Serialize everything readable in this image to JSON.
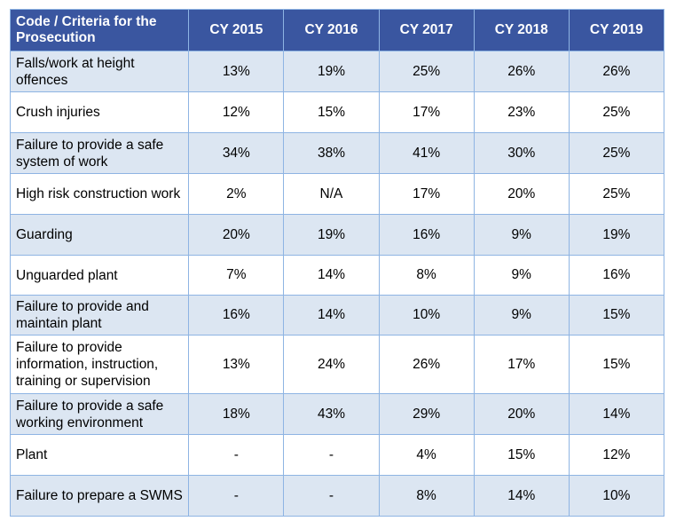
{
  "table": {
    "headers": [
      "Code / Criteria for the Prosecution",
      "CY 2015",
      "CY 2016",
      "CY 2017",
      "CY 2018",
      "CY 2019"
    ],
    "rows": [
      {
        "criteria": "Falls/work at height offences",
        "values": [
          "13%",
          "19%",
          "25%",
          "26%",
          "26%"
        ]
      },
      {
        "criteria": "Crush injuries",
        "values": [
          "12%",
          "15%",
          "17%",
          "23%",
          "25%"
        ]
      },
      {
        "criteria": "Failure to provide a safe system of work",
        "values": [
          "34%",
          "38%",
          "41%",
          "30%",
          "25%"
        ]
      },
      {
        "criteria": "High risk construction work",
        "values": [
          "2%",
          "N/A",
          "17%",
          "20%",
          "25%"
        ]
      },
      {
        "criteria": "Guarding",
        "values": [
          "20%",
          "19%",
          "16%",
          "9%",
          "19%"
        ]
      },
      {
        "criteria": "Unguarded plant",
        "values": [
          "7%",
          "14%",
          "8%",
          "9%",
          "16%"
        ]
      },
      {
        "criteria": "Failure to provide and maintain plant",
        "values": [
          "16%",
          "14%",
          "10%",
          "9%",
          "15%"
        ]
      },
      {
        "criteria": "Failure to provide information, instruction, training or supervision",
        "values": [
          "13%",
          "24%",
          "26%",
          "17%",
          "15%"
        ]
      },
      {
        "criteria": "Failure to provide a safe working environment",
        "values": [
          "18%",
          "43%",
          "29%",
          "20%",
          "14%"
        ]
      },
      {
        "criteria": "Plant",
        "values": [
          "-",
          "-",
          "4%",
          "15%",
          "12%"
        ]
      },
      {
        "criteria": "Failure to prepare a SWMS",
        "values": [
          "-",
          "-",
          "8%",
          "14%",
          "10%"
        ]
      }
    ]
  }
}
